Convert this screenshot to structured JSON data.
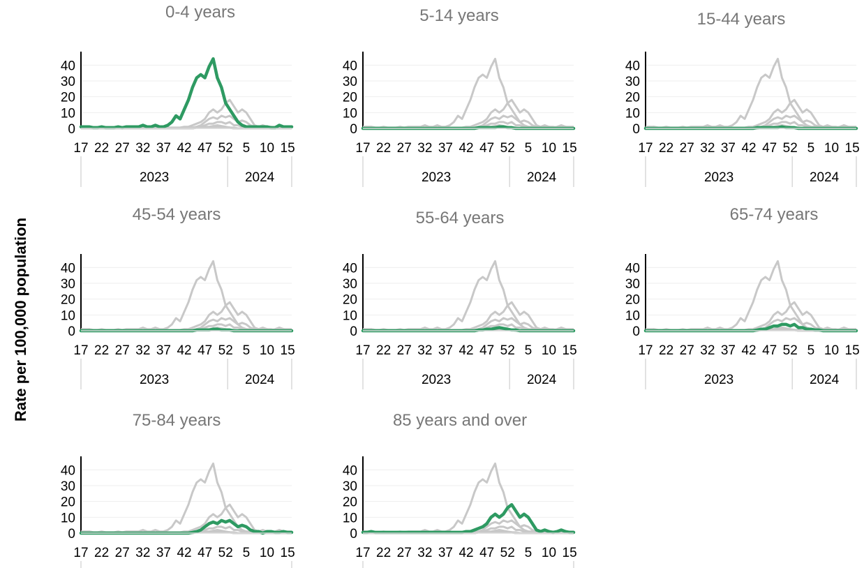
{
  "y_axis_label": "Rate per 100,000 population",
  "chart_data": {
    "type": "line",
    "ylabel": "Rate per 100,000 population",
    "ylim": [
      0,
      45
    ],
    "yticks": [
      0,
      10,
      20,
      30,
      40
    ],
    "x_tick_labels": [
      "17",
      "22",
      "27",
      "32",
      "37",
      "42",
      "47",
      "52",
      "5",
      "10",
      "15"
    ],
    "year_labels": [
      "2023",
      "2024"
    ],
    "x_weeks": [
      "2023-W17",
      "2023-W18",
      "2023-W19",
      "2023-W20",
      "2023-W21",
      "2023-W22",
      "2023-W23",
      "2023-W24",
      "2023-W25",
      "2023-W26",
      "2023-W27",
      "2023-W28",
      "2023-W29",
      "2023-W30",
      "2023-W31",
      "2023-W32",
      "2023-W33",
      "2023-W34",
      "2023-W35",
      "2023-W36",
      "2023-W37",
      "2023-W38",
      "2023-W39",
      "2023-W40",
      "2023-W41",
      "2023-W42",
      "2023-W43",
      "2023-W44",
      "2023-W45",
      "2023-W46",
      "2023-W47",
      "2023-W48",
      "2023-W49",
      "2023-W50",
      "2023-W51",
      "2023-W52",
      "2024-W01",
      "2024-W02",
      "2024-W03",
      "2024-W04",
      "2024-W05",
      "2024-W06",
      "2024-W07",
      "2024-W08",
      "2024-W09",
      "2024-W10",
      "2024-W11",
      "2024-W12",
      "2024-W13",
      "2024-W14",
      "2024-W15",
      "2024-W16"
    ],
    "highlight_color": "#2e9a62",
    "background_color": "#c8c8c8",
    "panels": [
      {
        "title": "0-4 years",
        "values": [
          1,
          1,
          1,
          0.5,
          0.5,
          1,
          0.5,
          0.5,
          0.5,
          1,
          0.5,
          1,
          1,
          1,
          1,
          2,
          1,
          1,
          2,
          1,
          1,
          2,
          4,
          8,
          6,
          12,
          18,
          26,
          32,
          34,
          32,
          39,
          44,
          32,
          26,
          16,
          12,
          8,
          4,
          2,
          1,
          1,
          1,
          1,
          1,
          1,
          0.5,
          0.5,
          2,
          1,
          1,
          1
        ]
      },
      {
        "title": "5-14 years",
        "values": [
          0,
          0,
          0,
          0,
          0,
          0,
          0,
          0,
          0,
          0,
          0,
          0,
          0,
          0,
          0,
          0,
          0,
          0,
          0,
          0,
          0,
          0,
          0,
          0,
          0,
          0,
          0,
          0,
          0.5,
          0.5,
          0.5,
          0.5,
          0.5,
          1,
          1,
          0.5,
          0.5,
          0,
          0,
          0,
          0,
          0,
          0,
          0,
          0,
          0,
          0,
          0,
          0,
          0,
          0,
          0
        ]
      },
      {
        "title": "15-44 years",
        "values": [
          0,
          0,
          0,
          0,
          0,
          0,
          0,
          0,
          0,
          0,
          0,
          0,
          0,
          0,
          0,
          0,
          0,
          0,
          0,
          0,
          0,
          0,
          0,
          0,
          0,
          0,
          0,
          0.5,
          0.5,
          0.5,
          0.5,
          0.5,
          0.5,
          1,
          0.5,
          0.5,
          0.5,
          0,
          0,
          0,
          0,
          0,
          0,
          0,
          0,
          0,
          0,
          0,
          0,
          0,
          0,
          0
        ]
      },
      {
        "title": "45-54 years",
        "values": [
          0,
          0,
          0,
          0,
          0,
          0,
          0,
          0,
          0,
          0,
          0,
          0,
          0,
          0,
          0,
          0,
          0,
          0,
          0,
          0,
          0,
          0,
          0,
          0,
          0,
          0,
          0,
          0,
          0.5,
          0.5,
          0.5,
          0.5,
          1,
          1,
          0.5,
          0.5,
          0.5,
          0,
          0,
          0,
          0,
          0,
          0,
          0,
          0,
          0,
          0,
          0,
          0,
          0,
          0,
          0
        ]
      },
      {
        "title": "55-64 years",
        "values": [
          0,
          0,
          0,
          0,
          0,
          0,
          0,
          0,
          0,
          0,
          0,
          0,
          0,
          0,
          0,
          0,
          0,
          0,
          0,
          0,
          0,
          0,
          0,
          0,
          0,
          0,
          0,
          0,
          0.5,
          0.5,
          1,
          1,
          1.5,
          2,
          1.5,
          1,
          0.5,
          0.5,
          0,
          0,
          0,
          0,
          0,
          0,
          0,
          0,
          0,
          0,
          0,
          0,
          0,
          0
        ]
      },
      {
        "title": "65-74 years",
        "values": [
          0,
          0,
          0,
          0,
          0,
          0,
          0,
          0,
          0,
          0,
          0,
          0,
          0,
          0,
          0,
          0,
          0,
          0,
          0,
          0,
          0,
          0,
          0,
          0,
          0,
          0,
          0,
          0.5,
          1,
          1,
          2,
          3,
          3,
          4,
          4,
          3,
          4,
          2,
          2,
          1,
          1,
          0.5,
          0.5,
          0,
          0,
          0,
          0,
          0,
          0,
          0,
          0,
          0
        ]
      },
      {
        "title": "75-84 years",
        "values": [
          0,
          0,
          0,
          0,
          0,
          0,
          0,
          0,
          0,
          0,
          0,
          0,
          0,
          0,
          0,
          0,
          0,
          0,
          0,
          0,
          0,
          0,
          0,
          0,
          0,
          0,
          0,
          0.5,
          1,
          2,
          4,
          6,
          7,
          6,
          8,
          7,
          8,
          6,
          4,
          5,
          4,
          2,
          1,
          1,
          0,
          1,
          1,
          0.5,
          0.5,
          1,
          0.5,
          0.5
        ]
      },
      {
        "title": "85 years and over",
        "values": [
          0.5,
          0.5,
          1,
          0.5,
          0.5,
          0.5,
          0.5,
          0.5,
          0.5,
          0.5,
          0.5,
          0.5,
          0.5,
          0.5,
          0.5,
          0.5,
          0.5,
          0.5,
          0.5,
          0.5,
          0.5,
          0.5,
          0.5,
          0.5,
          0.5,
          1,
          1,
          2,
          3,
          4,
          6,
          10,
          12,
          10,
          12,
          16,
          18,
          14,
          10,
          12,
          10,
          6,
          2,
          1,
          2,
          1,
          0.5,
          1,
          2,
          1,
          0.5,
          0.5
        ]
      }
    ]
  }
}
